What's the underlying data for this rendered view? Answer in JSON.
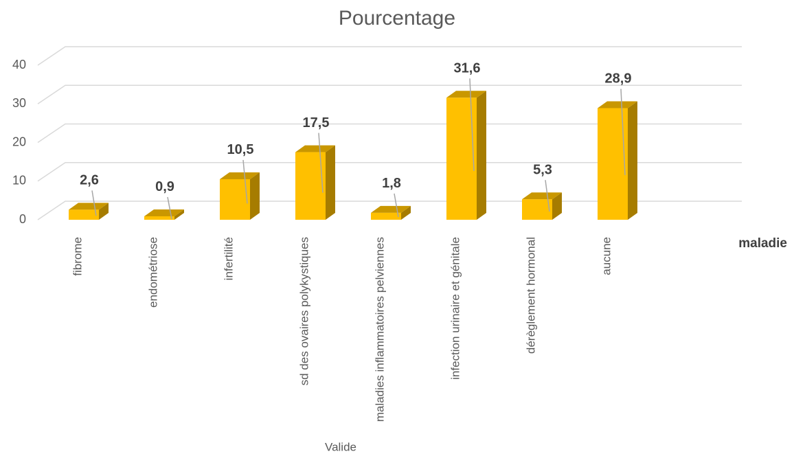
{
  "chart_data": {
    "type": "bar3d",
    "title": "Pourcentage",
    "x_label": "Valide",
    "legend_label": "maladie",
    "categories": [
      "fibrome",
      "endométriose",
      "infertilité",
      "sd des ovaires polykystiques",
      "maladies inflammatoires pelviennes",
      "infection urinaire et génitale",
      "dérèglement hormonal",
      "aucune"
    ],
    "values": [
      2.6,
      0.9,
      10.5,
      17.5,
      1.8,
      31.6,
      5.3,
      28.9
    ],
    "value_labels": [
      "2,6",
      "0,9",
      "10,5",
      "17,5",
      "1,8",
      "31,6",
      "5,3",
      "28,9"
    ],
    "color": "#ffc000",
    "ylim": [
      0,
      40
    ],
    "yticks": [
      0,
      10,
      20,
      30,
      40
    ],
    "grid": true
  }
}
